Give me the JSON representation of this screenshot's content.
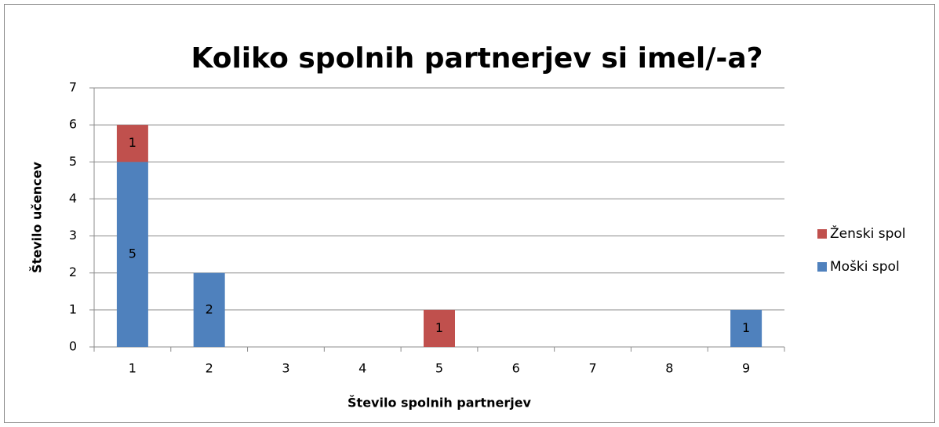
{
  "chart_data": {
    "type": "stacked_bar",
    "title": "Koliko spolnih partnerjev si imel/-a?",
    "x_label": "Število spolnih partnerjev",
    "y_label": "Število učencev",
    "categories": [
      "1",
      "2",
      "3",
      "4",
      "5",
      "6",
      "7",
      "8",
      "9"
    ],
    "series": [
      {
        "name": "Moški spol",
        "color": "#4f81bd",
        "values": [
          5,
          2,
          0,
          0,
          0,
          0,
          0,
          0,
          1
        ]
      },
      {
        "name": "Ženski spol",
        "color": "#c0504d",
        "values": [
          1,
          0,
          0,
          0,
          1,
          0,
          0,
          0,
          0
        ]
      }
    ],
    "ylim": [
      0,
      7
    ],
    "yticks": [
      0,
      1,
      2,
      3,
      4,
      5,
      6,
      7
    ],
    "grid": true,
    "legend": "right"
  }
}
